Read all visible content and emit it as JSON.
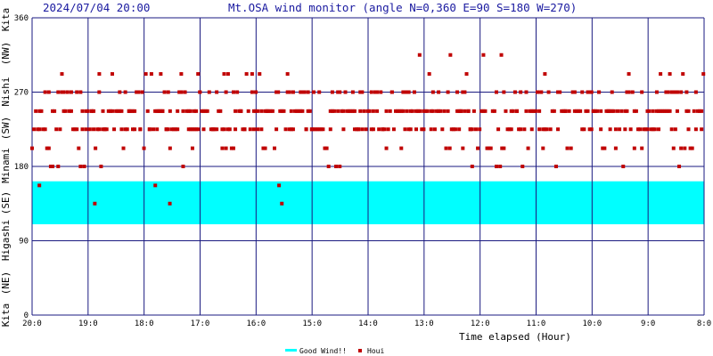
{
  "header": {
    "datetime": "2024/07/04 20:00",
    "title": "Mt.OSA wind monitor (angle N=0,360 E=90 S=180 W=270)"
  },
  "chart_data": {
    "type": "scatter",
    "xlabel": "Time elapsed (Hour)",
    "x_ticks": [
      "20:0",
      "19:0",
      "18:0",
      "17:0",
      "16:0",
      "15:0",
      "14:0",
      "13:0",
      "12:0",
      "11:0",
      "10:0",
      "9:0",
      "8:0"
    ],
    "x_range": [
      0,
      12
    ],
    "y_ticks": [
      "0",
      "90",
      "180",
      "270",
      "360"
    ],
    "ylim": [
      0,
      360
    ],
    "direction_labels": [
      "Kita",
      "(NE)",
      "Higashi",
      "(SE)",
      "Minami",
      "(SW)",
      "Nishi",
      "(NW)",
      "Kita"
    ],
    "good_wind_band": {
      "from": 110,
      "to": 162,
      "color": "#00ffff",
      "label": "Good Wind!!"
    },
    "houi_series": {
      "name": "Houi",
      "color": "#c00000",
      "sample_interval_hours": 0.0333,
      "direction_levels": [
        135,
        157,
        180,
        202,
        225,
        247,
        270,
        292,
        315
      ],
      "notable_points": [
        {
          "x": 0.13,
          "y": 157
        },
        {
          "x": 1.12,
          "y": 135
        },
        {
          "x": 2.2,
          "y": 157
        },
        {
          "x": 2.46,
          "y": 135
        },
        {
          "x": 4.41,
          "y": 157
        },
        {
          "x": 4.46,
          "y": 135
        },
        {
          "x": 6.92,
          "y": 315
        },
        {
          "x": 7.47,
          "y": 315
        },
        {
          "x": 8.06,
          "y": 315
        },
        {
          "x": 8.38,
          "y": 315
        },
        {
          "x": 1.2,
          "y": 292
        },
        {
          "x": 3.5,
          "y": 292
        }
      ]
    },
    "grid": true,
    "legend_position": "bottom-center"
  }
}
